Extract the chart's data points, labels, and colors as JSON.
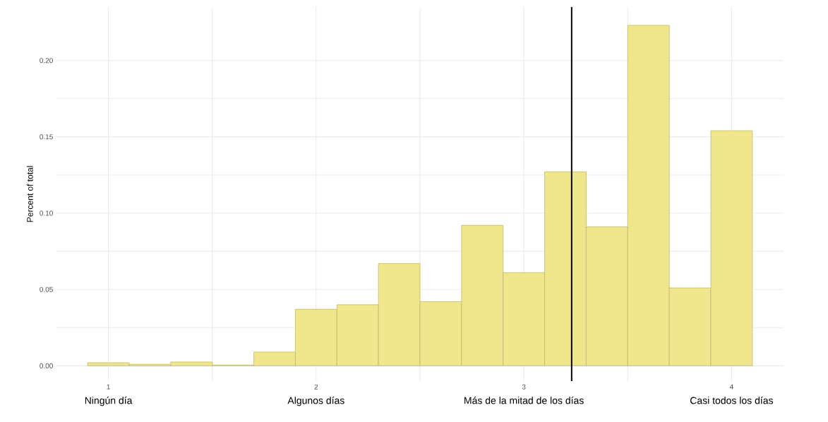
{
  "chart_data": {
    "type": "histogram",
    "ylabel": "Percent of total",
    "bins": [
      0.9,
      1.1,
      1.3,
      1.5,
      1.7,
      1.9,
      2.1,
      2.3,
      2.5,
      2.7,
      2.9,
      3.1,
      3.3,
      3.5,
      3.7,
      3.9,
      4.1
    ],
    "values": [
      0.002,
      0.001,
      0.0025,
      0.0005,
      0.009,
      0.037,
      0.04,
      0.067,
      0.042,
      0.092,
      0.061,
      0.127,
      0.091,
      0.223,
      0.051,
      0.154
    ],
    "color": "#f0e68c",
    "xlim": [
      0.75,
      4.25
    ],
    "xticks": [
      1,
      2,
      3,
      4
    ],
    "ylim": [
      -0.01,
      0.235
    ],
    "yticks": [
      {
        "value": 0,
        "label": "0.00"
      },
      {
        "value": 0.05,
        "label": "0.05"
      },
      {
        "value": 0.1,
        "label": "0.10"
      },
      {
        "value": 0.15,
        "label": "0.15"
      },
      {
        "value": 0.2,
        "label": "0.20"
      }
    ],
    "annotations": [
      "Ningún día",
      "Algunos días",
      "Más de la mitad de los días",
      "Casi todos los días"
    ],
    "ref_lines": [
      {
        "axis": "x",
        "value": 3.23,
        "color": "#000000"
      }
    ],
    "grid": true
  }
}
